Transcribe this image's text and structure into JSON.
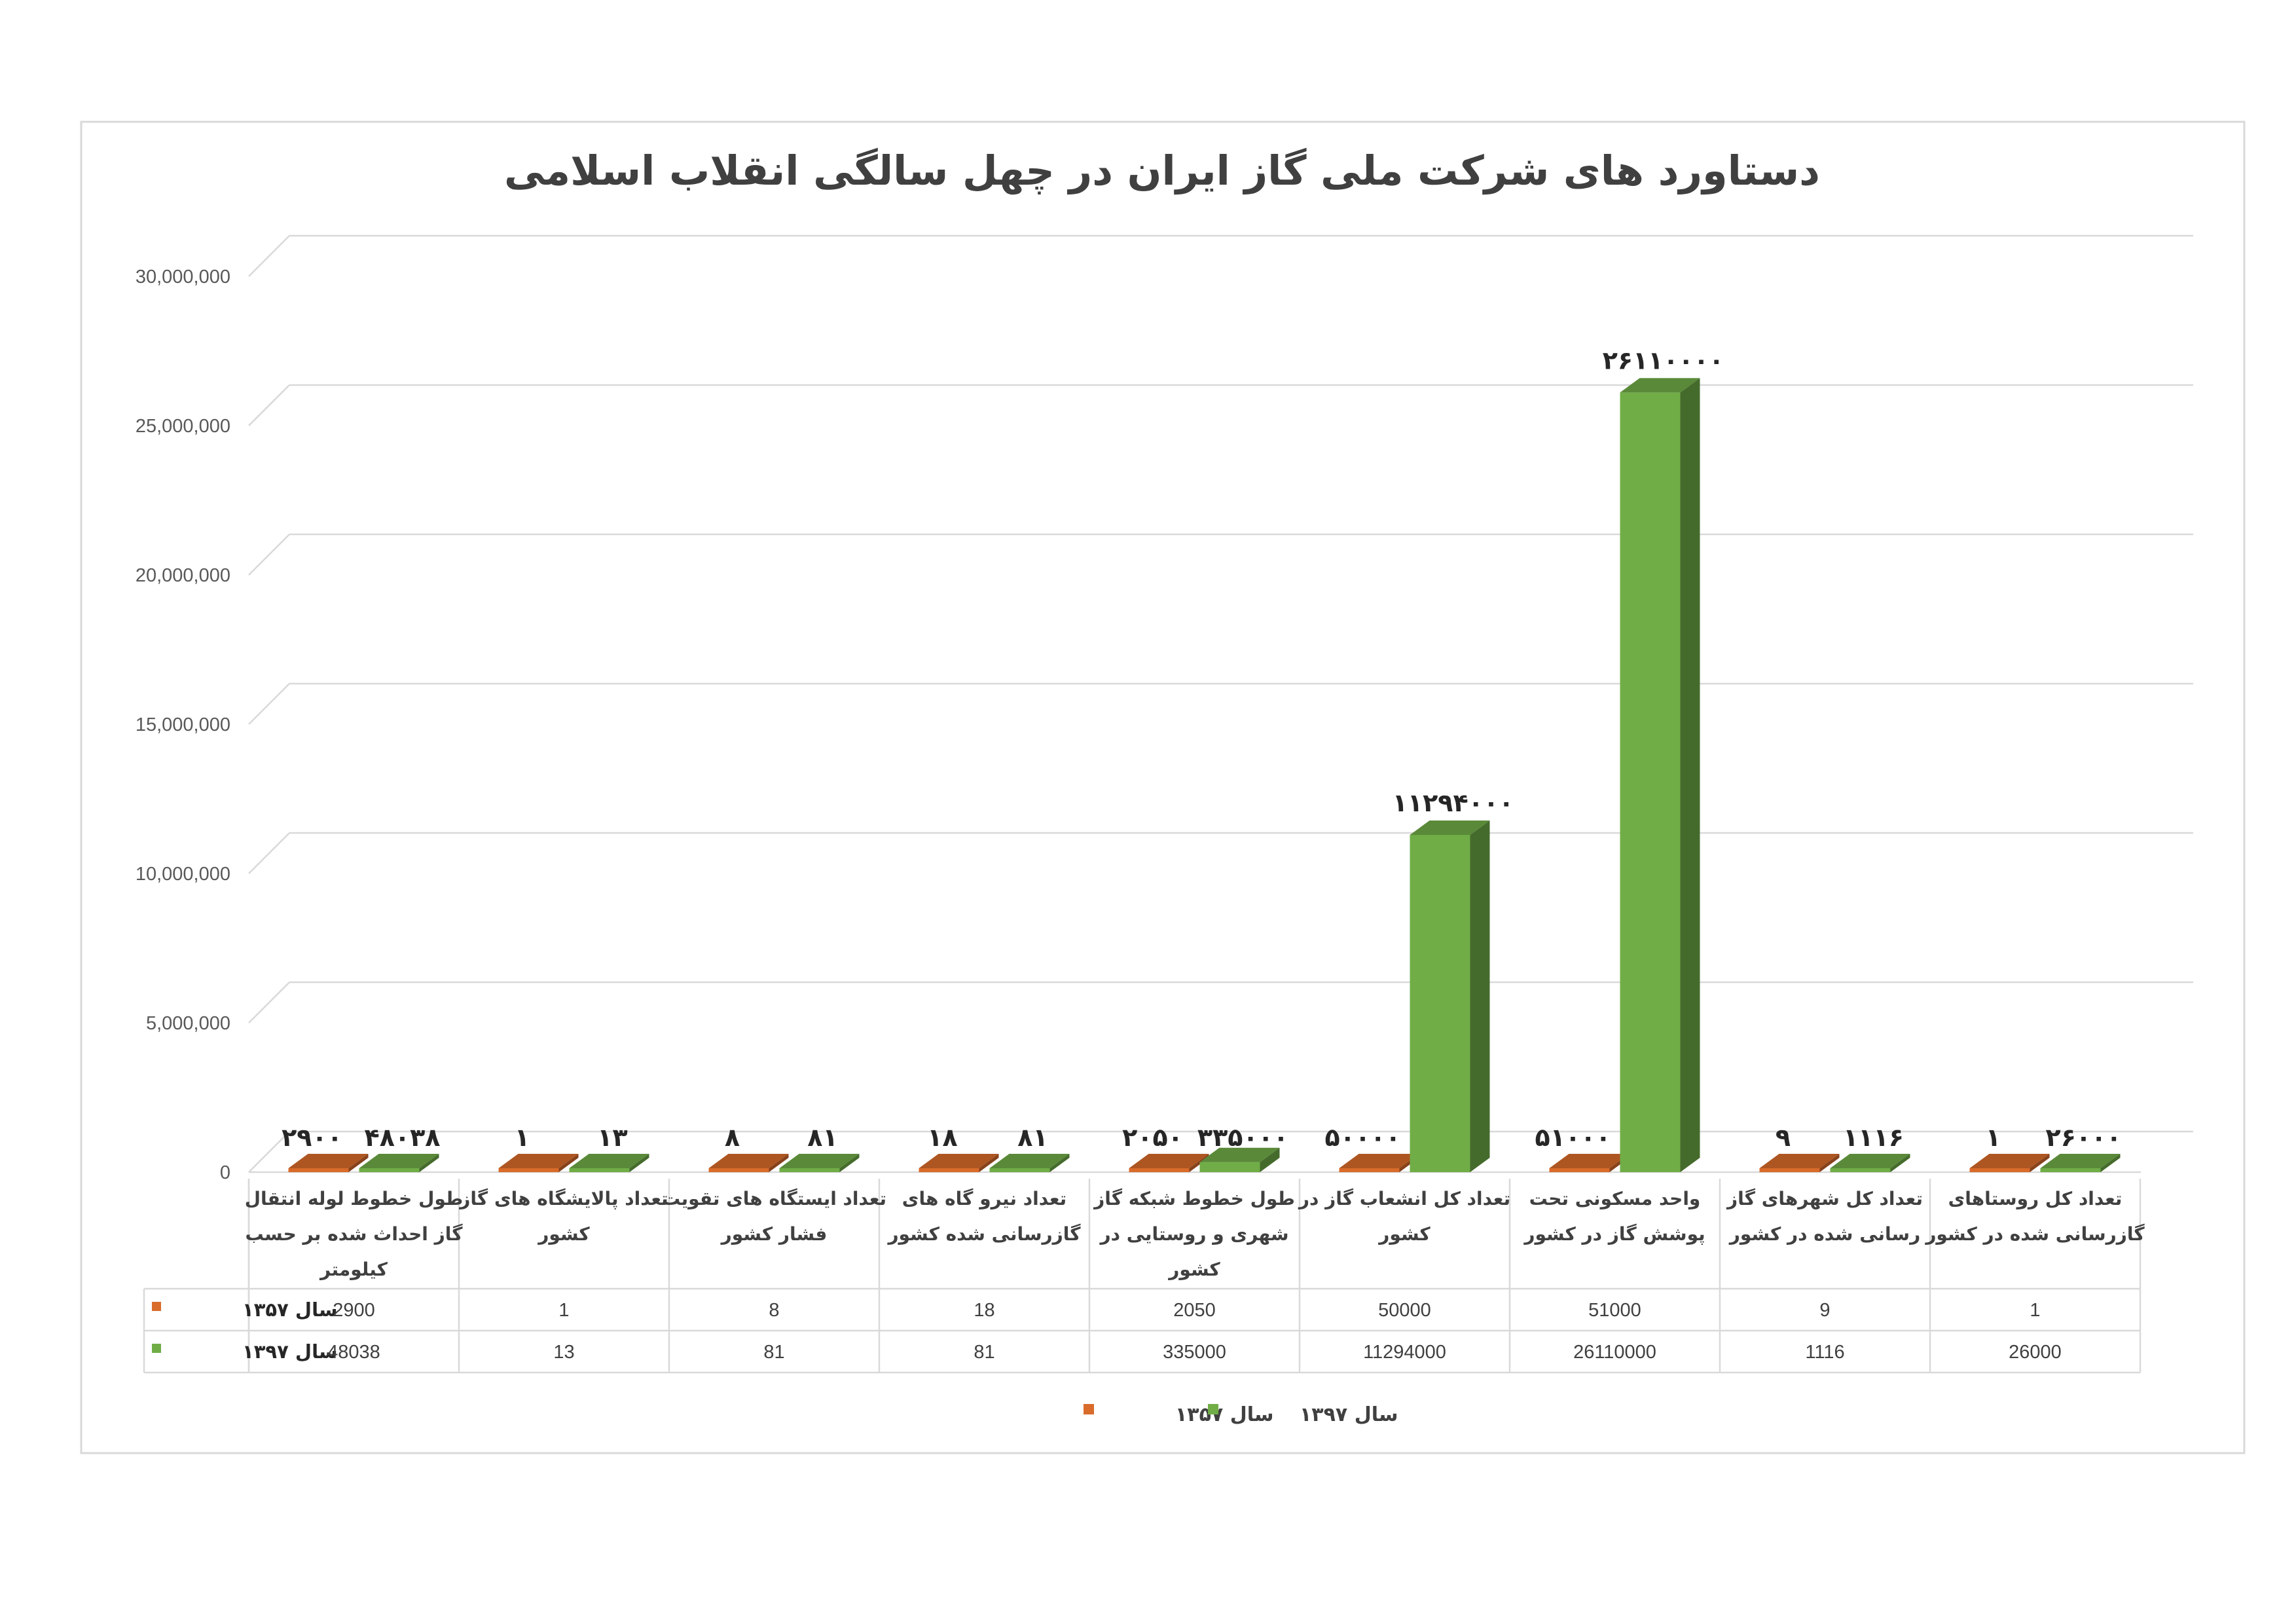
{
  "colors": {
    "series_1357": "#d96b2b",
    "series_1397": "#70ad47",
    "grid": "#d9d9d9"
  },
  "chart_data": {
    "type": "bar",
    "title": "دستاورد های شرکت ملی گاز ایران در چهل سالگی انقلاب اسلامی",
    "categories": [
      [
        "طول خطوط لوله انتقال",
        "گاز احداث شده بر حسب",
        "کیلومتر"
      ],
      [
        "تعداد پالایشگاه های گاز",
        "کشور"
      ],
      [
        "تعداد ایستگاه های تقویت",
        "فشار کشور"
      ],
      [
        "تعداد نیرو گاه های",
        "گازرسانی شده کشور"
      ],
      [
        "طول خطوط شبکه گاز",
        "شهری و روستایی در",
        "کشور"
      ],
      [
        "تعداد کل انشعاب گاز در",
        "کشور"
      ],
      [
        "واحد مسکونی تحت",
        "پوشش گاز در کشور"
      ],
      [
        "تعداد کل شهرهای گاز",
        "رسانی شده در کشور"
      ],
      [
        "تعداد کل روستاهای",
        "گازرسانی شده در کشور"
      ]
    ],
    "series": [
      {
        "name": "سال ۱۳۵۷",
        "values": [
          2900,
          1,
          8,
          18,
          2050,
          50000,
          51000,
          9,
          1
        ],
        "labels": [
          "۲۹۰۰",
          "۱",
          "۸",
          "۱۸",
          "۲۰۵۰",
          "۵۰۰۰۰",
          "۵۱۰۰۰",
          "۹",
          "۱"
        ],
        "table_values": [
          "2900",
          "1",
          "8",
          "18",
          "2050",
          "50000",
          "51000",
          "9",
          "1"
        ]
      },
      {
        "name": "سال ۱۳۹۷",
        "values": [
          48038,
          13,
          81,
          81,
          335000,
          11294000,
          26110000,
          1116,
          26000
        ],
        "labels": [
          "۴۸۰۳۸",
          "۱۳",
          "۸۱",
          "۸۱",
          "۳۳۵۰۰۰",
          "۱۱۲۹۴۰۰۰",
          "۲۶۱۱۰۰۰۰",
          "۱۱۱۶",
          "۲۶۰۰۰"
        ],
        "table_values": [
          "48038",
          "13",
          "81",
          "81",
          "335000",
          "11294000",
          "26110000",
          "1116",
          "26000"
        ]
      }
    ],
    "y_ticks": [
      "0",
      "5,000,000",
      "10,000,000",
      "15,000,000",
      "20,000,000",
      "25,000,000",
      "30,000,000"
    ],
    "ylim": [
      0,
      30000000
    ],
    "grid": true,
    "legend": "bottom",
    "data_table": true
  }
}
